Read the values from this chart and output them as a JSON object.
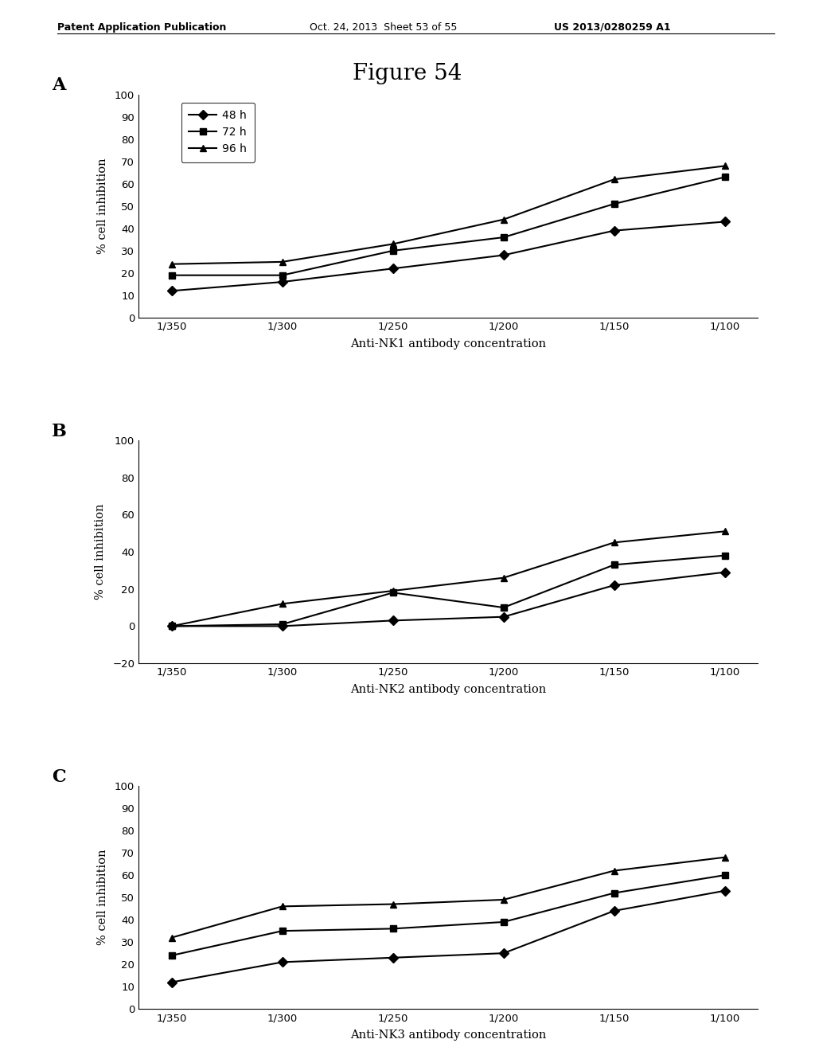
{
  "figure_title": "Figure 54",
  "header_left": "Patent Application Publication",
  "header_center": "Oct. 24, 2013  Sheet 53 of 55",
  "header_right": "US 2013/0280259 A1",
  "x_labels": [
    "1/350",
    "1/300",
    "1/250",
    "1/200",
    "1/150",
    "1/100"
  ],
  "panels": [
    {
      "panel_label": "A",
      "xlabel": "Anti-NK1 antibody concentration",
      "ylabel": "% cell inhibition",
      "ylim": [
        0,
        100
      ],
      "yticks": [
        0,
        10,
        20,
        30,
        40,
        50,
        60,
        70,
        80,
        90,
        100
      ],
      "has_legend": true,
      "series": [
        {
          "label": "48 h",
          "marker": "D",
          "values": [
            12,
            16,
            22,
            28,
            39,
            43
          ]
        },
        {
          "label": "72 h",
          "marker": "s",
          "values": [
            19,
            19,
            30,
            36,
            51,
            63
          ]
        },
        {
          "label": "96 h",
          "marker": "^",
          "values": [
            24,
            25,
            33,
            44,
            62,
            68
          ]
        }
      ]
    },
    {
      "panel_label": "B",
      "xlabel": "Anti-NK2 antibody concentration",
      "ylabel": "% cell inhibition",
      "ylim": [
        -20,
        100
      ],
      "yticks": [
        -20,
        0,
        20,
        40,
        60,
        80,
        100
      ],
      "has_legend": false,
      "series": [
        {
          "label": "48 h",
          "marker": "D",
          "values": [
            0,
            0,
            3,
            5,
            22,
            29
          ]
        },
        {
          "label": "72 h",
          "marker": "s",
          "values": [
            0,
            1,
            18,
            10,
            33,
            38
          ]
        },
        {
          "label": "96 h",
          "marker": "^",
          "values": [
            0,
            12,
            19,
            26,
            45,
            51
          ]
        }
      ]
    },
    {
      "panel_label": "C",
      "xlabel": "Anti-NK3 antibody concentration",
      "ylabel": "% cell inhibition",
      "ylim": [
        0,
        100
      ],
      "yticks": [
        0,
        10,
        20,
        30,
        40,
        50,
        60,
        70,
        80,
        90,
        100
      ],
      "has_legend": false,
      "series": [
        {
          "label": "48 h",
          "marker": "D",
          "values": [
            12,
            21,
            23,
            25,
            44,
            53
          ]
        },
        {
          "label": "72 h",
          "marker": "s",
          "values": [
            24,
            35,
            36,
            39,
            52,
            60
          ]
        },
        {
          "label": "96 h",
          "marker": "^",
          "values": [
            32,
            46,
            47,
            49,
            62,
            68
          ]
        }
      ]
    }
  ],
  "line_color": "#000000",
  "bg_color": "#ffffff",
  "markersize": 6,
  "linewidth": 1.5
}
